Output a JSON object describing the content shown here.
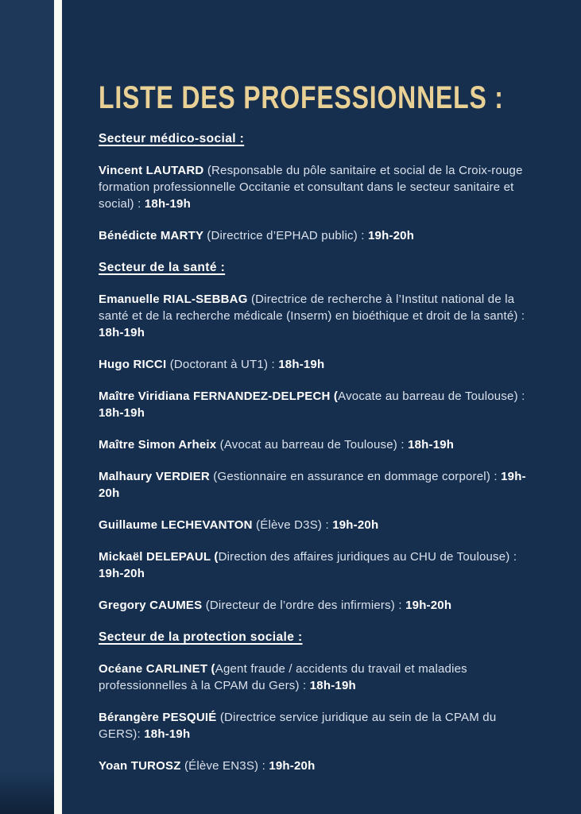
{
  "title": "LISTE DES PROFESSIONNELS :",
  "colors": {
    "background": "#172f4e",
    "left_band": "#1d3859",
    "stripe": "#f8faf3",
    "accent_gold": "#e9d195",
    "body_text": "#d9e1ec",
    "bold_text": "#ffffff"
  },
  "sections": [
    {
      "header": "Secteur médico-social :",
      "entries": [
        {
          "name": "Vincent LAUTARD ",
          "desc": "(Responsable du pôle sanitaire et social de la Croix-rouge formation professionnelle Occitanie et consultant dans le secteur sanitaire et social) : ",
          "time": "18h-19h"
        },
        {
          "name": "Bénédicte MARTY ",
          "desc": "(Directrice d’EPHAD public) : ",
          "time": "19h-20h"
        }
      ]
    },
    {
      "header": "Secteur de la santé :",
      "entries": [
        {
          "name": "Emanuelle RIAL-SEBBAG ",
          "desc": "(Directrice de recherche à l’Institut national de la santé et de la recherche médicale (Inserm) en bioéthique et droit de la santé) : ",
          "time": "18h-19h"
        },
        {
          "name": "Hugo RICCI ",
          "desc": "(Doctorant à UT1) : ",
          "time": "18h-19h"
        },
        {
          "name": "Maître Viridiana FERNANDEZ-DELPECH (",
          "desc": "Avocate au barreau de Toulouse) : ",
          "time": "18h-19h"
        },
        {
          "name": "Maître Simon Arheix ",
          "desc": "(Avocat au barreau de Toulouse) : ",
          "time": "18h-19h"
        },
        {
          "name": "Malhaury VERDIER ",
          "desc": "(Gestionnaire en assurance en dommage corporel) : ",
          "time": "19h-20h"
        },
        {
          "name": "Guillaume LECHEVANTON ",
          "desc": "(Élève D3S) : ",
          "time": "19h-20h"
        },
        {
          "name": "Mickaël DELEPAUL (",
          "desc": "Direction des affaires juridiques au CHU de Toulouse) : ",
          "time": "19h-20h"
        },
        {
          "name": "Gregory CAUMES ",
          "desc": "(Directeur de l’ordre des infirmiers) : ",
          "time": "19h-20h"
        }
      ]
    },
    {
      "header": "Secteur de la protection sociale :",
      "entries": [
        {
          "name": "Océane CARLINET (",
          "desc": "Agent fraude / accidents du travail et maladies professionnelles à la CPAM du Gers) : ",
          "time": "18h-19h"
        },
        {
          "name": "Bérangère PESQUIÉ ",
          "desc": "(Directrice service juridique au sein de la CPAM du GERS): ",
          "time": "18h-19h"
        },
        {
          "name": "Yoan TUROSZ ",
          "desc": "(Élève EN3S) : ",
          "time": "19h-20h"
        }
      ]
    }
  ]
}
